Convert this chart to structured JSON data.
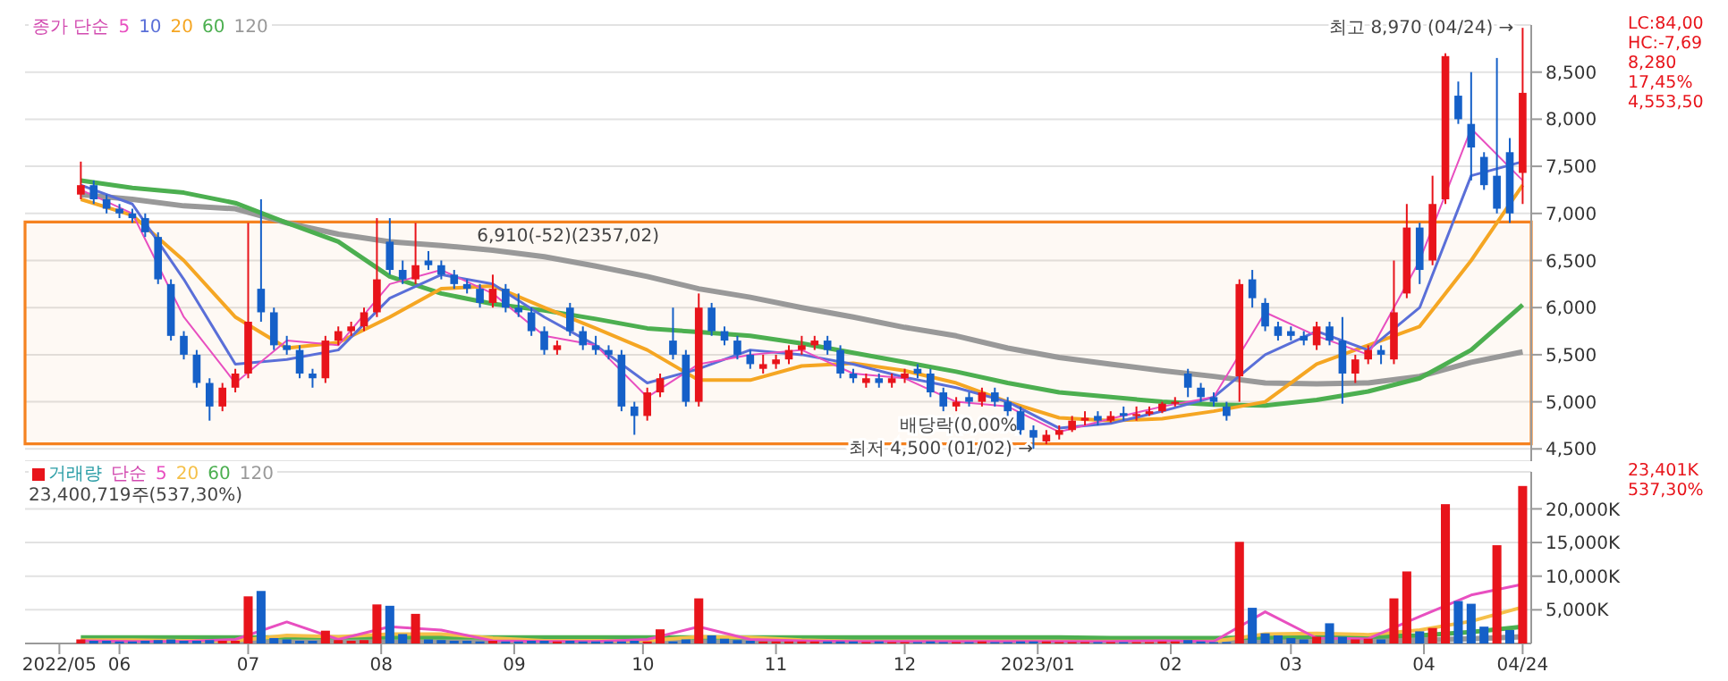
{
  "chart_data": [
    {
      "type": "candlestick",
      "legend": "top left",
      "legend_title": "종가 단순",
      "grid": "y",
      "tick_labels": "y",
      "xlim": [
        "2022-05-10",
        "2023-04-26"
      ],
      "ylim": [
        4370,
        9000
      ],
      "yticks": [
        {
          "value": 4500,
          "label": "4,500"
        },
        {
          "value": 5000,
          "label": "5,000"
        },
        {
          "value": 5500,
          "label": "5,500"
        },
        {
          "value": 6000,
          "label": "6,000"
        },
        {
          "value": 6500,
          "label": "6,500"
        },
        {
          "value": 7000,
          "label": "7,000"
        },
        {
          "value": 7500,
          "label": "7,500"
        },
        {
          "value": 8000,
          "label": "8,000"
        },
        {
          "value": 8500,
          "label": "8,500"
        }
      ],
      "x": [
        "2022-05-23",
        "2022-05-26",
        "2022-05-29",
        "2022-06-01",
        "2022-06-04",
        "2022-06-07",
        "2022-06-10",
        "2022-06-13",
        "2022-06-16",
        "2022-06-19",
        "2022-06-22",
        "2022-06-25",
        "2022-06-28",
        "2022-07-01",
        "2022-07-04",
        "2022-07-07",
        "2022-07-10",
        "2022-07-13",
        "2022-07-16",
        "2022-07-19",
        "2022-07-22",
        "2022-07-25",
        "2022-07-28",
        "2022-07-31",
        "2022-08-03",
        "2022-08-06",
        "2022-08-09",
        "2022-08-12",
        "2022-08-15",
        "2022-08-18",
        "2022-08-21",
        "2022-08-24",
        "2022-08-27",
        "2022-08-30",
        "2022-09-02",
        "2022-09-05",
        "2022-09-08",
        "2022-09-11",
        "2022-09-14",
        "2022-09-17",
        "2022-09-20",
        "2022-09-23",
        "2022-09-26",
        "2022-09-29",
        "2022-10-02",
        "2022-10-05",
        "2022-10-08",
        "2022-10-11",
        "2022-10-14",
        "2022-10-17",
        "2022-10-20",
        "2022-10-23",
        "2022-10-26",
        "2022-10-29",
        "2022-11-01",
        "2022-11-04",
        "2022-11-07",
        "2022-11-10",
        "2022-11-13",
        "2022-11-16",
        "2022-11-19",
        "2022-11-22",
        "2022-11-25",
        "2022-11-28",
        "2022-12-01",
        "2022-12-04",
        "2022-12-07",
        "2022-12-10",
        "2022-12-13",
        "2022-12-16",
        "2022-12-19",
        "2022-12-22",
        "2022-12-25",
        "2022-12-28",
        "2022-12-31",
        "2023-01-03",
        "2023-01-06",
        "2023-01-09",
        "2023-01-12",
        "2023-01-15",
        "2023-01-18",
        "2023-01-21",
        "2023-01-24",
        "2023-01-27",
        "2023-01-30",
        "2023-02-02",
        "2023-02-05",
        "2023-02-08",
        "2023-02-11",
        "2023-02-14",
        "2023-02-17",
        "2023-02-20",
        "2023-02-23",
        "2023-02-26",
        "2023-03-01",
        "2023-03-04",
        "2023-03-07",
        "2023-03-10",
        "2023-03-13",
        "2023-03-16",
        "2023-03-19",
        "2023-03-22",
        "2023-03-25",
        "2023-03-28",
        "2023-03-31",
        "2023-04-03",
        "2023-04-06",
        "2023-04-09",
        "2023-04-12",
        "2023-04-15",
        "2023-04-18",
        "2023-04-21",
        "2023-04-24"
      ],
      "ohlc": [
        [
          7200,
          7550,
          7150,
          7300
        ],
        [
          7300,
          7350,
          7100,
          7150
        ],
        [
          7150,
          7200,
          7000,
          7050
        ],
        [
          7050,
          7100,
          6950,
          7000
        ],
        [
          7000,
          7050,
          6900,
          6950
        ],
        [
          6950,
          7000,
          6750,
          6800
        ],
        [
          6750,
          6800,
          6250,
          6300
        ],
        [
          6250,
          6300,
          5650,
          5700
        ],
        [
          5700,
          5750,
          5450,
          5500
        ],
        [
          5500,
          5550,
          5150,
          5200
        ],
        [
          5200,
          5250,
          4800,
          4950
        ],
        [
          4950,
          5200,
          4900,
          5150
        ],
        [
          5150,
          5350,
          5100,
          5300
        ],
        [
          5300,
          6900,
          5250,
          5850
        ],
        [
          6200,
          7150,
          5850,
          5950
        ],
        [
          5950,
          6000,
          5550,
          5600
        ],
        [
          5600,
          5700,
          5500,
          5550
        ],
        [
          5550,
          5600,
          5250,
          5300
        ],
        [
          5300,
          5350,
          5150,
          5250
        ],
        [
          5250,
          5700,
          5200,
          5650
        ],
        [
          5650,
          5800,
          5600,
          5750
        ],
        [
          5750,
          5850,
          5700,
          5800
        ],
        [
          5800,
          6000,
          5750,
          5950
        ],
        [
          5950,
          6950,
          5900,
          6300
        ],
        [
          6700,
          6950,
          6350,
          6400
        ],
        [
          6400,
          6500,
          6250,
          6300
        ],
        [
          6300,
          6900,
          6250,
          6450
        ],
        [
          6500,
          6600,
          6400,
          6450
        ],
        [
          6450,
          6500,
          6300,
          6350
        ],
        [
          6350,
          6400,
          6200,
          6250
        ],
        [
          6250,
          6300,
          6150,
          6200
        ],
        [
          6200,
          6250,
          6000,
          6050
        ],
        [
          6050,
          6350,
          6000,
          6200
        ],
        [
          6200,
          6250,
          5950,
          6000
        ],
        [
          6000,
          6150,
          5900,
          5950
        ],
        [
          5950,
          6000,
          5700,
          5750
        ],
        [
          5750,
          5800,
          5500,
          5550
        ],
        [
          5550,
          5650,
          5500,
          5600
        ],
        [
          6000,
          6050,
          5700,
          5750
        ],
        [
          5750,
          5800,
          5550,
          5600
        ],
        [
          5600,
          5700,
          5500,
          5550
        ],
        [
          5550,
          5600,
          5450,
          5500
        ],
        [
          5500,
          5550,
          4900,
          4950
        ],
        [
          4950,
          5000,
          4650,
          4850
        ],
        [
          4850,
          5150,
          4800,
          5100
        ],
        [
          5100,
          5300,
          5050,
          5250
        ],
        [
          5650,
          6000,
          5450,
          5500
        ],
        [
          5500,
          5550,
          4950,
          5000
        ],
        [
          5000,
          6150,
          4950,
          6000
        ],
        [
          6000,
          6050,
          5700,
          5750
        ],
        [
          5750,
          5800,
          5600,
          5650
        ],
        [
          5650,
          5700,
          5450,
          5500
        ],
        [
          5500,
          5550,
          5350,
          5400
        ],
        [
          5350,
          5500,
          5300,
          5400
        ],
        [
          5400,
          5500,
          5350,
          5450
        ],
        [
          5450,
          5600,
          5400,
          5550
        ],
        [
          5550,
          5700,
          5500,
          5600
        ],
        [
          5600,
          5700,
          5550,
          5650
        ],
        [
          5650,
          5700,
          5500,
          5550
        ],
        [
          5550,
          5600,
          5250,
          5300
        ],
        [
          5300,
          5350,
          5200,
          5250
        ],
        [
          5200,
          5300,
          5150,
          5250
        ],
        [
          5250,
          5300,
          5150,
          5200
        ],
        [
          5200,
          5300,
          5150,
          5250
        ],
        [
          5250,
          5350,
          5200,
          5300
        ],
        [
          5350,
          5400,
          5250,
          5300
        ],
        [
          5300,
          5350,
          5050,
          5100
        ],
        [
          5100,
          5150,
          4900,
          4950
        ],
        [
          4950,
          5050,
          4900,
          5000
        ],
        [
          5050,
          5100,
          4950,
          5000
        ],
        [
          5000,
          5150,
          4950,
          5100
        ],
        [
          5100,
          5150,
          4950,
          5000
        ],
        [
          5000,
          5050,
          4850,
          4900
        ],
        [
          4900,
          4950,
          4650,
          4700
        ],
        [
          4700,
          4750,
          4500,
          4620
        ],
        [
          4580,
          4700,
          4550,
          4650
        ],
        [
          4650,
          4750,
          4600,
          4700
        ],
        [
          4700,
          4850,
          4680,
          4800
        ],
        [
          4800,
          4900,
          4750,
          4830
        ],
        [
          4850,
          4900,
          4750,
          4800
        ],
        [
          4800,
          4900,
          4780,
          4850
        ],
        [
          4880,
          4950,
          4800,
          4850
        ],
        [
          4850,
          4950,
          4800,
          4870
        ],
        [
          4870,
          4950,
          4850,
          4900
        ],
        [
          4900,
          5000,
          4880,
          4980
        ],
        [
          4980,
          5050,
          4950,
          5000
        ],
        [
          5300,
          5350,
          5050,
          5150
        ],
        [
          5150,
          5200,
          5000,
          5050
        ],
        [
          5050,
          5100,
          4950,
          5000
        ],
        [
          4950,
          5000,
          4800,
          4850
        ],
        [
          5270,
          6300,
          5000,
          6250
        ],
        [
          6300,
          6400,
          6000,
          6100
        ],
        [
          6050,
          6100,
          5750,
          5800
        ],
        [
          5800,
          5850,
          5650,
          5700
        ],
        [
          5750,
          5800,
          5650,
          5700
        ],
        [
          5700,
          5750,
          5600,
          5650
        ],
        [
          5600,
          5850,
          5550,
          5800
        ],
        [
          5800,
          5850,
          5600,
          5650
        ],
        [
          5650,
          5900,
          4980,
          5300
        ],
        [
          5300,
          5500,
          5200,
          5450
        ],
        [
          5450,
          5600,
          5400,
          5550
        ],
        [
          5550,
          5600,
          5400,
          5500
        ],
        [
          5450,
          6500,
          5400,
          5950
        ],
        [
          6150,
          7100,
          6100,
          6850
        ],
        [
          6850,
          6900,
          6250,
          6400
        ],
        [
          6500,
          7400,
          6450,
          7100
        ],
        [
          7150,
          8700,
          7100,
          8670
        ],
        [
          8250,
          8400,
          7950,
          8000
        ],
        [
          7950,
          8500,
          7350,
          7700
        ],
        [
          7600,
          7650,
          7250,
          7300
        ],
        [
          7400,
          8650,
          7000,
          7050
        ],
        [
          7650,
          7800,
          6900,
          7000
        ],
        [
          7430,
          8970,
          7100,
          8280
        ]
      ],
      "colors": [
        "#e8141b",
        "#1560c8",
        "#1560c8",
        "#1560c8",
        "#1560c8",
        "#1560c8",
        "#1560c8",
        "#1560c8",
        "#1560c8",
        "#1560c8",
        "#1560c8",
        "#e8141b",
        "#e8141b",
        "#e8141b",
        "#1560c8",
        "#1560c8",
        "#1560c8",
        "#1560c8",
        "#1560c8",
        "#e8141b",
        "#e8141b",
        "#e8141b",
        "#e8141b",
        "#e8141b",
        "#1560c8",
        "#1560c8",
        "#e8141b",
        "#1560c8",
        "#1560c8",
        "#1560c8",
        "#1560c8",
        "#1560c8",
        "#e8141b",
        "#1560c8",
        "#1560c8",
        "#1560c8",
        "#1560c8",
        "#e8141b",
        "#1560c8",
        "#1560c8",
        "#1560c8",
        "#1560c8",
        "#1560c8",
        "#1560c8",
        "#e8141b",
        "#e8141b",
        "#1560c8",
        "#1560c8",
        "#e8141b",
        "#1560c8",
        "#1560c8",
        "#1560c8",
        "#1560c8",
        "#e8141b",
        "#e8141b",
        "#e8141b",
        "#e8141b",
        "#e8141b",
        "#1560c8",
        "#1560c8",
        "#1560c8",
        "#e8141b",
        "#1560c8",
        "#e8141b",
        "#e8141b",
        "#1560c8",
        "#1560c8",
        "#1560c8",
        "#e8141b",
        "#1560c8",
        "#e8141b",
        "#1560c8",
        "#1560c8",
        "#1560c8",
        "#1560c8",
        "#e8141b",
        "#e8141b",
        "#e8141b",
        "#e8141b",
        "#1560c8",
        "#e8141b",
        "#1560c8",
        "#e8141b",
        "#e8141b",
        "#e8141b",
        "#e8141b",
        "#1560c8",
        "#1560c8",
        "#1560c8",
        "#1560c8",
        "#e8141b",
        "#1560c8",
        "#1560c8",
        "#1560c8",
        "#1560c8",
        "#1560c8",
        "#e8141b",
        "#1560c8",
        "#1560c8",
        "#e8141b",
        "#e8141b",
        "#1560c8",
        "#e8141b",
        "#e8141b",
        "#1560c8",
        "#e8141b",
        "#e8141b",
        "#1560c8",
        "#1560c8",
        "#1560c8",
        "#1560c8",
        "#1560c8",
        "#e8141b"
      ],
      "series": [
        {
          "type": "line",
          "name": "5",
          "color": "#e84fc0",
          "x": [
            "2022-05-23",
            "2022-06-04",
            "2022-06-16",
            "2022-06-28",
            "2022-07-10",
            "2022-07-22",
            "2022-08-03",
            "2022-08-15",
            "2022-08-27",
            "2022-09-08",
            "2022-09-20",
            "2022-10-02",
            "2022-10-14",
            "2022-10-26",
            "2022-11-07",
            "2022-11-19",
            "2022-12-01",
            "2022-12-13",
            "2022-12-25",
            "2023-01-06",
            "2023-01-18",
            "2023-01-30",
            "2023-02-11",
            "2023-02-23",
            "2023-03-07",
            "2023-03-19",
            "2023-03-31",
            "2023-04-12",
            "2023-04-24"
          ],
          "values": [
            7250,
            7000,
            5900,
            5200,
            5650,
            5600,
            6250,
            6400,
            6150,
            5700,
            5600,
            5050,
            5400,
            5500,
            5550,
            5300,
            5250,
            5000,
            4950,
            4680,
            4820,
            4950,
            5050,
            5950,
            5700,
            5500,
            6500,
            7900,
            7350
          ]
        },
        {
          "type": "line",
          "name": "10",
          "color": "#5a6fd8",
          "x": [
            "2022-05-23",
            "2022-06-04",
            "2022-06-16",
            "2022-06-28",
            "2022-07-10",
            "2022-07-22",
            "2022-08-03",
            "2022-08-15",
            "2022-08-27",
            "2022-09-08",
            "2022-09-20",
            "2022-10-02",
            "2022-10-14",
            "2022-10-26",
            "2022-11-07",
            "2022-11-19",
            "2022-12-01",
            "2022-12-13",
            "2022-12-25",
            "2023-01-06",
            "2023-01-18",
            "2023-01-30",
            "2023-02-11",
            "2023-02-23",
            "2023-03-07",
            "2023-03-19",
            "2023-03-31",
            "2023-04-12",
            "2023-04-24"
          ],
          "values": [
            7300,
            7100,
            6300,
            5400,
            5450,
            5550,
            6100,
            6350,
            6250,
            5900,
            5600,
            5200,
            5350,
            5550,
            5500,
            5400,
            5260,
            5150,
            5000,
            4720,
            4770,
            4900,
            5050,
            5500,
            5750,
            5550,
            6000,
            7400,
            7550
          ]
        },
        {
          "type": "line",
          "name": "20",
          "color": "#f5a623",
          "x": [
            "2022-05-23",
            "2022-06-04",
            "2022-06-16",
            "2022-06-28",
            "2022-07-10",
            "2022-07-22",
            "2022-08-03",
            "2022-08-15",
            "2022-08-27",
            "2022-09-08",
            "2022-09-20",
            "2022-10-02",
            "2022-10-14",
            "2022-10-26",
            "2022-11-07",
            "2022-11-19",
            "2022-12-01",
            "2022-12-13",
            "2022-12-25",
            "2023-01-06",
            "2023-01-18",
            "2023-01-30",
            "2023-02-11",
            "2023-02-23",
            "2023-03-07",
            "2023-03-19",
            "2023-03-31",
            "2023-04-12",
            "2023-04-24"
          ],
          "values": [
            7150,
            6980,
            6500,
            5900,
            5570,
            5630,
            5900,
            6200,
            6230,
            6000,
            5780,
            5550,
            5230,
            5230,
            5380,
            5410,
            5330,
            5200,
            5000,
            4830,
            4800,
            4820,
            4900,
            5000,
            5400,
            5600,
            5800,
            6500,
            7300
          ]
        },
        {
          "type": "line",
          "name": "60",
          "color": "#4caf50",
          "x": [
            "2022-05-23",
            "2022-06-04",
            "2022-06-16",
            "2022-06-28",
            "2022-07-10",
            "2022-07-22",
            "2022-08-03",
            "2022-08-15",
            "2022-08-27",
            "2022-09-08",
            "2022-09-20",
            "2022-10-02",
            "2022-10-14",
            "2022-10-26",
            "2022-11-07",
            "2022-11-19",
            "2022-12-01",
            "2022-12-13",
            "2022-12-25",
            "2023-01-06",
            "2023-01-18",
            "2023-01-30",
            "2023-02-11",
            "2023-02-23",
            "2023-03-07",
            "2023-03-19",
            "2023-03-31",
            "2023-04-12",
            "2023-04-24"
          ],
          "values": [
            7350,
            7270,
            7220,
            7110,
            6900,
            6700,
            6330,
            6150,
            6040,
            5970,
            5880,
            5780,
            5740,
            5700,
            5620,
            5520,
            5420,
            5320,
            5200,
            5100,
            5050,
            5000,
            4970,
            4960,
            5020,
            5110,
            5250,
            5550,
            6030
          ]
        },
        {
          "type": "line",
          "name": "120",
          "color": "#999999",
          "x": [
            "2022-05-23",
            "2022-06-04",
            "2022-06-16",
            "2022-06-28",
            "2022-07-10",
            "2022-07-22",
            "2022-08-03",
            "2022-08-15",
            "2022-08-27",
            "2022-09-08",
            "2022-09-20",
            "2022-10-02",
            "2022-10-14",
            "2022-10-26",
            "2022-11-07",
            "2022-11-19",
            "2022-12-01",
            "2022-12-13",
            "2022-12-25",
            "2023-01-06",
            "2023-01-18",
            "2023-01-30",
            "2023-02-11",
            "2023-02-23",
            "2023-03-07",
            "2023-03-19",
            "2023-03-31",
            "2023-04-12",
            "2023-04-24"
          ],
          "values": [
            7200,
            7150,
            7080,
            7050,
            6900,
            6780,
            6700,
            6660,
            6610,
            6540,
            6440,
            6330,
            6200,
            6110,
            6000,
            5900,
            5790,
            5700,
            5570,
            5470,
            5400,
            5330,
            5270,
            5200,
            5190,
            5200,
            5270,
            5420,
            5530
          ]
        }
      ],
      "bands": [
        {
          "axis": "y",
          "from": 4553.5,
          "to": 6910,
          "color": "#f58220",
          "label": "6,910(-52)(2357,02)"
        }
      ],
      "annotations": [
        {
          "text": "최고 8,970 (04/24) →",
          "x": "2023-04-24",
          "y": 8970
        },
        {
          "text": "최저 4,500 (01/02) →",
          "x": "2023-01-02",
          "y": 4500
        },
        {
          "text": "배당락(0,00%)",
          "x": "2022-12-31",
          "y": 4750
        },
        "LC:84,00",
        "HC:-7,69",
        "8,280",
        "17,45%",
        "4,553,50"
      ]
    },
    {
      "type": "bar",
      "legend": "top left",
      "legend_title": "단순",
      "grid": "y",
      "xlim": [
        "2022-05-10",
        "2023-04-26"
      ],
      "ylim": [
        0,
        25500
      ],
      "xticks": [
        {
          "value": "2022-05-18",
          "label": "2022/05"
        },
        {
          "value": "2022-06-01",
          "label": "06"
        },
        {
          "value": "2022-07-01",
          "label": "07"
        },
        {
          "value": "2022-08-01",
          "label": "08"
        },
        {
          "value": "2022-09-01",
          "label": "09"
        },
        {
          "value": "2022-10-01",
          "label": "10"
        },
        {
          "value": "2022-11-01",
          "label": "11"
        },
        {
          "value": "2022-12-01",
          "label": "12"
        },
        {
          "value": "2023-01-01",
          "label": "2023/01"
        },
        {
          "value": "2023-02-01",
          "label": "02"
        },
        {
          "value": "2023-03-01",
          "label": "03"
        },
        {
          "value": "2023-04-01",
          "label": "04"
        },
        {
          "value": "2023-04-24",
          "label": "04/24"
        }
      ],
      "yticks": [
        {
          "value": 5000,
          "label": "5,000K"
        },
        {
          "value": 10000,
          "label": "10,000K"
        },
        {
          "value": 15000,
          "label": "15,000K"
        },
        {
          "value": 20000,
          "label": "20,000K"
        }
      ],
      "x": [
        "2022-05-23",
        "2022-05-26",
        "2022-05-29",
        "2022-06-01",
        "2022-06-04",
        "2022-06-07",
        "2022-06-10",
        "2022-06-13",
        "2022-06-16",
        "2022-06-19",
        "2022-06-22",
        "2022-06-25",
        "2022-06-28",
        "2022-07-01",
        "2022-07-04",
        "2022-07-07",
        "2022-07-10",
        "2022-07-13",
        "2022-07-16",
        "2022-07-19",
        "2022-07-22",
        "2022-07-25",
        "2022-07-28",
        "2022-07-31",
        "2022-08-03",
        "2022-08-06",
        "2022-08-09",
        "2022-08-12",
        "2022-08-15",
        "2022-08-18",
        "2022-08-21",
        "2022-08-24",
        "2022-08-27",
        "2022-08-30",
        "2022-09-02",
        "2022-09-05",
        "2022-09-08",
        "2022-09-11",
        "2022-09-14",
        "2022-09-17",
        "2022-09-20",
        "2022-09-23",
        "2022-09-26",
        "2022-09-29",
        "2022-10-02",
        "2022-10-05",
        "2022-10-08",
        "2022-10-11",
        "2022-10-14",
        "2022-10-17",
        "2022-10-20",
        "2022-10-23",
        "2022-10-26",
        "2022-10-29",
        "2022-11-01",
        "2022-11-04",
        "2022-11-07",
        "2022-11-10",
        "2022-11-13",
        "2022-11-16",
        "2022-11-19",
        "2022-11-22",
        "2022-11-25",
        "2022-11-28",
        "2022-12-01",
        "2022-12-04",
        "2022-12-07",
        "2022-12-10",
        "2022-12-13",
        "2022-12-16",
        "2022-12-19",
        "2022-12-22",
        "2022-12-25",
        "2022-12-28",
        "2022-12-31",
        "2023-01-03",
        "2023-01-06",
        "2023-01-09",
        "2023-01-12",
        "2023-01-15",
        "2023-01-18",
        "2023-01-21",
        "2023-01-24",
        "2023-01-27",
        "2023-01-30",
        "2023-02-02",
        "2023-02-05",
        "2023-02-08",
        "2023-02-11",
        "2023-02-14",
        "2023-02-17",
        "2023-02-20",
        "2023-02-23",
        "2023-02-26",
        "2023-03-01",
        "2023-03-04",
        "2023-03-07",
        "2023-03-10",
        "2023-03-13",
        "2023-03-16",
        "2023-03-19",
        "2023-03-22",
        "2023-03-25",
        "2023-03-28",
        "2023-03-31",
        "2023-04-03",
        "2023-04-06",
        "2023-04-09",
        "2023-04-12",
        "2023-04-15",
        "2023-04-18",
        "2023-04-21",
        "2023-04-24"
      ],
      "series": [
        {
          "name": "거래량",
          "values": [
            600,
            400,
            400,
            300,
            300,
            400,
            500,
            600,
            400,
            400,
            500,
            400,
            400,
            7000,
            7800,
            800,
            600,
            400,
            400,
            1900,
            500,
            400,
            500,
            5800,
            5600,
            1400,
            4400,
            600,
            500,
            400,
            400,
            300,
            400,
            300,
            300,
            400,
            400,
            300,
            400,
            300,
            300,
            300,
            300,
            400,
            300,
            2100,
            300,
            600,
            6700,
            1200,
            700,
            500,
            400,
            300,
            300,
            300,
            300,
            300,
            300,
            300,
            300,
            200,
            300,
            200,
            200,
            200,
            300,
            200,
            200,
            200,
            300,
            200,
            200,
            300,
            300,
            300,
            200,
            200,
            200,
            200,
            200,
            200,
            200,
            200,
            300,
            300,
            500,
            300,
            200,
            200,
            15100,
            5300,
            1500,
            1200,
            800,
            600,
            1000,
            3000,
            1000,
            600,
            700,
            600,
            6700,
            10700,
            1800,
            2300,
            20700,
            6300,
            5900,
            2500,
            14600,
            2000,
            23401
          ],
          "colors": [
            "#e8141b",
            "#1560c8",
            "#1560c8",
            "#1560c8",
            "#1560c8",
            "#1560c8",
            "#1560c8",
            "#1560c8",
            "#1560c8",
            "#1560c8",
            "#1560c8",
            "#e8141b",
            "#e8141b",
            "#e8141b",
            "#1560c8",
            "#1560c8",
            "#1560c8",
            "#1560c8",
            "#1560c8",
            "#e8141b",
            "#e8141b",
            "#e8141b",
            "#e8141b",
            "#e8141b",
            "#1560c8",
            "#1560c8",
            "#e8141b",
            "#1560c8",
            "#1560c8",
            "#1560c8",
            "#1560c8",
            "#1560c8",
            "#e8141b",
            "#1560c8",
            "#1560c8",
            "#1560c8",
            "#1560c8",
            "#e8141b",
            "#1560c8",
            "#1560c8",
            "#1560c8",
            "#1560c8",
            "#1560c8",
            "#1560c8",
            "#e8141b",
            "#e8141b",
            "#1560c8",
            "#1560c8",
            "#e8141b",
            "#1560c8",
            "#1560c8",
            "#1560c8",
            "#1560c8",
            "#e8141b",
            "#e8141b",
            "#e8141b",
            "#e8141b",
            "#e8141b",
            "#1560c8",
            "#1560c8",
            "#1560c8",
            "#e8141b",
            "#1560c8",
            "#e8141b",
            "#e8141b",
            "#1560c8",
            "#1560c8",
            "#1560c8",
            "#e8141b",
            "#1560c8",
            "#e8141b",
            "#1560c8",
            "#1560c8",
            "#1560c8",
            "#1560c8",
            "#e8141b",
            "#e8141b",
            "#e8141b",
            "#e8141b",
            "#1560c8",
            "#e8141b",
            "#1560c8",
            "#e8141b",
            "#e8141b",
            "#e8141b",
            "#e8141b",
            "#1560c8",
            "#1560c8",
            "#1560c8",
            "#1560c8",
            "#e8141b",
            "#1560c8",
            "#1560c8",
            "#1560c8",
            "#1560c8",
            "#1560c8",
            "#e8141b",
            "#1560c8",
            "#1560c8",
            "#e8141b",
            "#e8141b",
            "#1560c8",
            "#e8141b",
            "#e8141b",
            "#1560c8",
            "#e8141b",
            "#e8141b",
            "#1560c8",
            "#1560c8",
            "#1560c8",
            "#e8141b",
            "#1560c8",
            "#e8141b"
          ]
        },
        {
          "type": "line",
          "name": "5",
          "color": "#e84fc0",
          "x": [
            "2022-05-23",
            "2022-06-04",
            "2022-06-16",
            "2022-06-28",
            "2022-07-10",
            "2022-07-22",
            "2022-08-03",
            "2022-08-15",
            "2022-08-27",
            "2022-09-08",
            "2022-09-20",
            "2022-10-02",
            "2022-10-14",
            "2022-10-26",
            "2022-11-07",
            "2022-11-19",
            "2022-12-01",
            "2022-12-13",
            "2022-12-25",
            "2023-01-06",
            "2023-01-18",
            "2023-01-30",
            "2023-02-11",
            "2023-02-23",
            "2023-03-07",
            "2023-03-19",
            "2023-03-31",
            "2023-04-12",
            "2023-04-24"
          ],
          "values": [
            400,
            300,
            300,
            600,
            3200,
            600,
            2500,
            2000,
            400,
            300,
            300,
            600,
            2500,
            600,
            400,
            300,
            300,
            300,
            300,
            300,
            300,
            400,
            300,
            4700,
            800,
            700,
            4000,
            7200,
            8800
          ]
        },
        {
          "type": "line",
          "name": "20",
          "color": "#f5c04a",
          "x": [
            "2022-05-23",
            "2022-06-04",
            "2022-06-16",
            "2022-06-28",
            "2022-07-10",
            "2022-07-22",
            "2022-08-03",
            "2022-08-15",
            "2022-08-27",
            "2022-09-08",
            "2022-09-20",
            "2022-10-02",
            "2022-10-14",
            "2022-10-26",
            "2022-11-07",
            "2022-11-19",
            "2022-12-01",
            "2022-12-13",
            "2022-12-25",
            "2023-01-06",
            "2023-01-18",
            "2023-01-30",
            "2023-02-11",
            "2023-02-23",
            "2023-03-07",
            "2023-03-19",
            "2023-03-31",
            "2023-04-12",
            "2023-04-24"
          ],
          "values": [
            500,
            500,
            400,
            400,
            1200,
            1000,
            1400,
            1400,
            800,
            400,
            400,
            400,
            1000,
            900,
            500,
            300,
            300,
            300,
            300,
            300,
            300,
            300,
            300,
            1400,
            1500,
            1300,
            2000,
            3300,
            5400
          ]
        },
        {
          "type": "line",
          "name": "60",
          "color": "#4caf50",
          "x": [
            "2022-05-23",
            "2022-06-04",
            "2022-06-16",
            "2022-06-28",
            "2022-07-10",
            "2022-07-22",
            "2022-08-03",
            "2022-08-15",
            "2022-08-27",
            "2022-09-08",
            "2022-09-20",
            "2022-10-02",
            "2022-10-14",
            "2022-10-26",
            "2022-11-07",
            "2022-11-19",
            "2022-12-01",
            "2022-12-13",
            "2022-12-25",
            "2023-01-06",
            "2023-01-18",
            "2023-01-30",
            "2023-02-11",
            "2023-02-23",
            "2023-03-07",
            "2023-03-19",
            "2023-03-31",
            "2023-04-12",
            "2023-04-24"
          ],
          "values": [
            900,
            900,
            900,
            900,
            900,
            900,
            900,
            900,
            900,
            900,
            900,
            900,
            900,
            900,
            900,
            900,
            900,
            900,
            900,
            900,
            800,
            800,
            800,
            900,
            1000,
            1000,
            1200,
            1700,
            2500
          ]
        },
        {
          "type": "line",
          "name": "120",
          "color": "#999999",
          "x": [
            "2022-05-23",
            "2022-06-04",
            "2022-06-16",
            "2022-06-28",
            "2022-07-10",
            "2022-07-22",
            "2022-08-03",
            "2022-08-15",
            "2022-08-27",
            "2022-09-08",
            "2022-09-20",
            "2022-10-02",
            "2022-10-14",
            "2022-10-26",
            "2022-11-07",
            "2022-11-19",
            "2022-12-01",
            "2022-12-13",
            "2022-12-25",
            "2023-01-06",
            "2023-01-18",
            "2023-01-30",
            "2023-02-11",
            "2023-02-23",
            "2023-03-07",
            "2023-03-19",
            "2023-03-31",
            "2023-04-12",
            "2023-04-24"
          ],
          "values": [
            200,
            200,
            200,
            200,
            200,
            200,
            200,
            200,
            200,
            200,
            200,
            200,
            200,
            200,
            200,
            200,
            200,
            200,
            200,
            200,
            200,
            200,
            200,
            300,
            400,
            400,
            500,
            700,
            1000
          ]
        }
      ],
      "annotations": [
        "23,400,719주(537,30%)",
        "23,401K",
        "537,30%"
      ]
    }
  ]
}
